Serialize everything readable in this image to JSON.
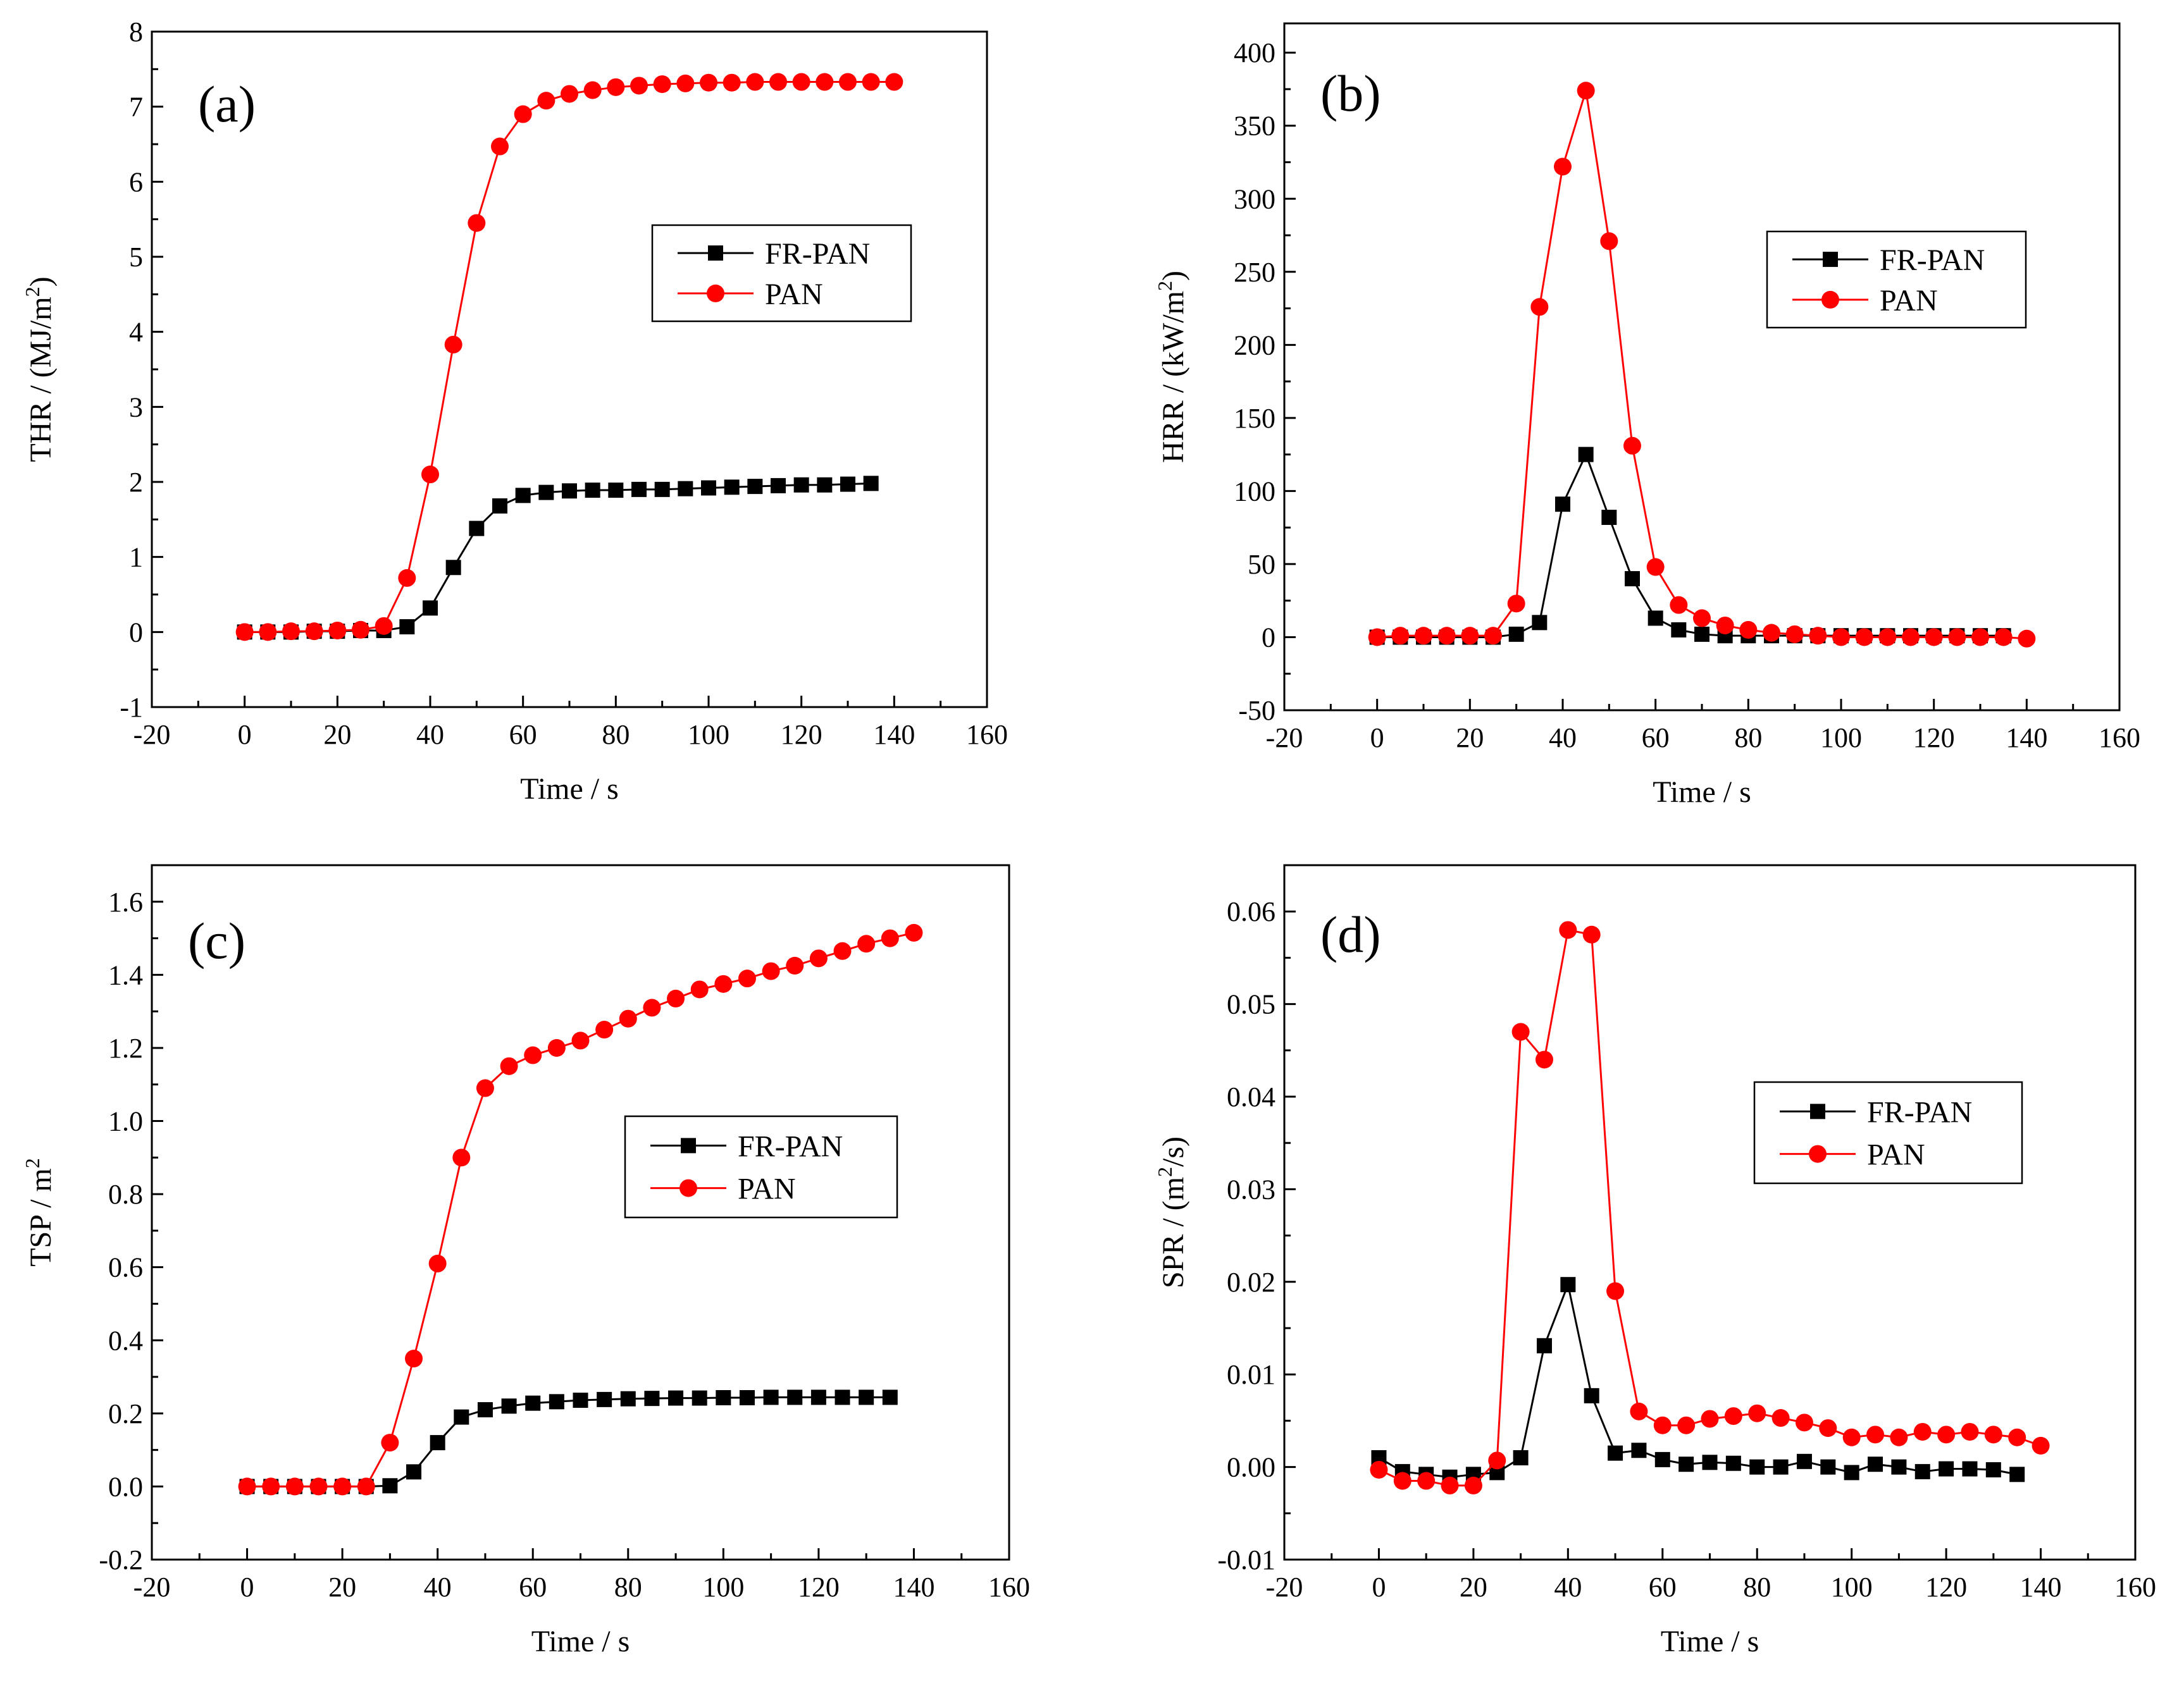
{
  "colors": {
    "fr_pan": "#000000",
    "pan": "#ff0000"
  },
  "chart_data": [
    {
      "type": "line",
      "panel_label": "(a)",
      "xlabel": "Time / s",
      "ylabel": "THR / (MJ/m2)",
      "ylabel_main": "THR / (MJ/m",
      "ylabel_sup": "2",
      "ylabel_end": ")",
      "xlim": [
        -20,
        160
      ],
      "ylim": [
        -1,
        8
      ],
      "xticks": [
        -20,
        0,
        20,
        40,
        60,
        80,
        100,
        120,
        140,
        160
      ],
      "yticks": [
        -1,
        0,
        1,
        2,
        3,
        4,
        5,
        6,
        7,
        8
      ],
      "legend_position": "center-right",
      "series": [
        {
          "name": "FR-PAN",
          "marker": "square",
          "x": [
            0,
            5,
            10,
            15,
            20,
            25,
            30,
            35,
            40,
            45,
            50,
            55,
            60,
            65,
            70,
            75,
            80,
            85,
            90,
            95,
            100,
            105,
            110,
            115,
            120,
            125,
            130,
            135
          ],
          "values": [
            0,
            0,
            0,
            0.01,
            0.01,
            0.02,
            0.02,
            0.07,
            0.32,
            0.86,
            1.38,
            1.68,
            1.82,
            1.86,
            1.88,
            1.89,
            1.89,
            1.9,
            1.9,
            1.91,
            1.92,
            1.93,
            1.94,
            1.95,
            1.96,
            1.96,
            1.97,
            1.98
          ]
        },
        {
          "name": "PAN",
          "marker": "circle",
          "x": [
            0,
            5,
            10,
            15,
            20,
            25,
            30,
            35,
            40,
            45,
            50,
            55,
            60,
            65,
            70,
            75,
            80,
            85,
            90,
            95,
            100,
            105,
            110,
            115,
            120,
            125,
            130,
            135,
            140
          ],
          "values": [
            0,
            0,
            0.01,
            0.01,
            0.02,
            0.03,
            0.08,
            0.72,
            2.1,
            3.83,
            5.45,
            6.47,
            6.9,
            7.08,
            7.17,
            7.22,
            7.26,
            7.28,
            7.3,
            7.31,
            7.32,
            7.32,
            7.33,
            7.33,
            7.33,
            7.33,
            7.33,
            7.33,
            7.33
          ]
        }
      ]
    },
    {
      "type": "line",
      "panel_label": "(b)",
      "xlabel": "Time / s",
      "ylabel": "HRR / (kW/m2)",
      "ylabel_main": "HRR / (kW/m",
      "ylabel_sup": "2",
      "ylabel_end": ")",
      "xlim": [
        -20,
        160
      ],
      "ylim": [
        -50,
        420
      ],
      "xticks": [
        -20,
        0,
        20,
        40,
        60,
        80,
        100,
        120,
        140,
        160
      ],
      "yticks": [
        -50,
        0,
        50,
        100,
        150,
        200,
        250,
        300,
        350,
        400
      ],
      "legend_position": "upper-right",
      "series": [
        {
          "name": "FR-PAN",
          "marker": "square",
          "x": [
            0,
            5,
            10,
            15,
            20,
            25,
            30,
            35,
            40,
            45,
            50,
            55,
            60,
            65,
            70,
            75,
            80,
            85,
            90,
            95,
            100,
            105,
            110,
            115,
            120,
            125,
            130,
            135
          ],
          "values": [
            0,
            0,
            0,
            0,
            0,
            0,
            2,
            10,
            91,
            125,
            82,
            40,
            13,
            5,
            2,
            1,
            1,
            1,
            1,
            1,
            1,
            1,
            1,
            1,
            1,
            1,
            1,
            1
          ]
        },
        {
          "name": "PAN",
          "marker": "circle",
          "x": [
            0,
            5,
            10,
            15,
            20,
            25,
            30,
            35,
            40,
            45,
            50,
            55,
            60,
            65,
            70,
            75,
            80,
            85,
            90,
            95,
            100,
            105,
            110,
            115,
            120,
            125,
            130,
            135,
            140
          ],
          "values": [
            0,
            1,
            1,
            1,
            1,
            1,
            23,
            226,
            322,
            374,
            271,
            131,
            48,
            22,
            13,
            8,
            5,
            3,
            2,
            1,
            0,
            0,
            0,
            0,
            0,
            0,
            0,
            0,
            -1
          ]
        }
      ]
    },
    {
      "type": "line",
      "panel_label": "(c)",
      "xlabel": "Time / s",
      "ylabel": "TSP / m2",
      "ylabel_main": "TSP / m",
      "ylabel_sup": "2",
      "ylabel_end": "",
      "xlim": [
        -20,
        160
      ],
      "ylim": [
        -0.2,
        1.7
      ],
      "xticks": [
        -20,
        0,
        20,
        40,
        60,
        80,
        100,
        120,
        140,
        160
      ],
      "yticks": [
        -0.2,
        0.0,
        0.2,
        0.4,
        0.6,
        0.8,
        1.0,
        1.2,
        1.4,
        1.6
      ],
      "ytick_labels": [
        "-0.2",
        "0.0",
        "0.2",
        "0.4",
        "0.6",
        "0.8",
        "1.0",
        "1.2",
        "1.4",
        "1.6"
      ],
      "legend_position": "center-right",
      "series": [
        {
          "name": "FR-PAN",
          "marker": "square",
          "x": [
            0,
            5,
            10,
            15,
            20,
            25,
            30,
            35,
            40,
            45,
            50,
            55,
            60,
            65,
            70,
            75,
            80,
            85,
            90,
            95,
            100,
            105,
            110,
            115,
            120,
            125,
            130,
            135
          ],
          "values": [
            0,
            0,
            0,
            0,
            0,
            0,
            0.002,
            0.04,
            0.12,
            0.19,
            0.21,
            0.22,
            0.228,
            0.232,
            0.236,
            0.238,
            0.24,
            0.241,
            0.242,
            0.242,
            0.243,
            0.243,
            0.244,
            0.244,
            0.244,
            0.244,
            0.244,
            0.244
          ]
        },
        {
          "name": "PAN",
          "marker": "circle",
          "x": [
            0,
            5,
            10,
            15,
            20,
            25,
            30,
            35,
            40,
            45,
            50,
            55,
            60,
            65,
            70,
            75,
            80,
            85,
            90,
            95,
            100,
            105,
            110,
            115,
            120,
            125,
            130,
            135,
            140
          ],
          "values": [
            0,
            0,
            0,
            0,
            0,
            0,
            0.12,
            0.35,
            0.61,
            0.9,
            1.09,
            1.15,
            1.18,
            1.2,
            1.22,
            1.25,
            1.28,
            1.31,
            1.335,
            1.36,
            1.375,
            1.39,
            1.41,
            1.425,
            1.445,
            1.465,
            1.485,
            1.5,
            1.515
          ]
        }
      ]
    },
    {
      "type": "line",
      "panel_label": "(d)",
      "xlabel": "Time / s",
      "ylabel": "SPR / (m2/s)",
      "ylabel_main": "SPR / (m",
      "ylabel_sup": "2",
      "ylabel_end": "/s)",
      "xlim": [
        -20,
        160
      ],
      "ylim": [
        -0.01,
        0.065
      ],
      "xticks": [
        -20,
        0,
        20,
        40,
        60,
        80,
        100,
        120,
        140,
        160
      ],
      "yticks": [
        -0.01,
        0.0,
        0.01,
        0.02,
        0.03,
        0.04,
        0.05,
        0.06
      ],
      "ytick_labels": [
        "-0.01",
        "0.00",
        "0.01",
        "0.02",
        "0.03",
        "0.04",
        "0.05",
        "0.06"
      ],
      "legend_position": "center-right",
      "series": [
        {
          "name": "FR-PAN",
          "marker": "square",
          "x": [
            0,
            5,
            10,
            15,
            20,
            25,
            30,
            35,
            40,
            45,
            50,
            55,
            60,
            65,
            70,
            75,
            80,
            85,
            90,
            95,
            100,
            105,
            110,
            115,
            120,
            125,
            130,
            135
          ],
          "values": [
            0.001,
            -0.0005,
            -0.0008,
            -0.0011,
            -0.0008,
            -0.0006,
            0.001,
            0.0131,
            0.0197,
            0.0077,
            0.0015,
            0.0018,
            0.0008,
            0.0003,
            0.0005,
            0.0004,
            0,
            0,
            0.0006,
            0,
            -0.0006,
            0.0003,
            0,
            -0.0005,
            -0.0002,
            -0.0002,
            -0.0003,
            -0.0008
          ]
        },
        {
          "name": "PAN",
          "marker": "circle",
          "x": [
            0,
            5,
            10,
            15,
            20,
            25,
            30,
            35,
            40,
            45,
            50,
            55,
            60,
            65,
            70,
            75,
            80,
            85,
            90,
            95,
            100,
            105,
            110,
            115,
            120,
            125,
            130,
            135,
            140
          ],
          "values": [
            -0.0003,
            -0.0015,
            -0.0015,
            -0.002,
            -0.002,
            0.0007,
            0.047,
            0.044,
            0.058,
            0.0575,
            0.019,
            0.006,
            0.0045,
            0.0045,
            0.0052,
            0.0055,
            0.0058,
            0.0053,
            0.0048,
            0.0042,
            0.0032,
            0.0035,
            0.0032,
            0.0038,
            0.0035,
            0.0038,
            0.0035,
            0.0032,
            0.0023
          ]
        }
      ]
    }
  ]
}
